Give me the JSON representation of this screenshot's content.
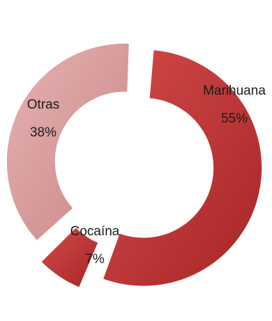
{
  "chart_data": {
    "type": "pie",
    "style": "donut-exploded",
    "slices": [
      {
        "label": "Marihuana",
        "value": 55,
        "value_label": "55%",
        "color": "#c23b3b"
      },
      {
        "label": "Cocaína",
        "value": 7,
        "value_label": "7%",
        "color": "#b83232"
      },
      {
        "label": "Otras",
        "value": 38,
        "value_label": "38%",
        "color": "#dba1a1"
      }
    ]
  }
}
